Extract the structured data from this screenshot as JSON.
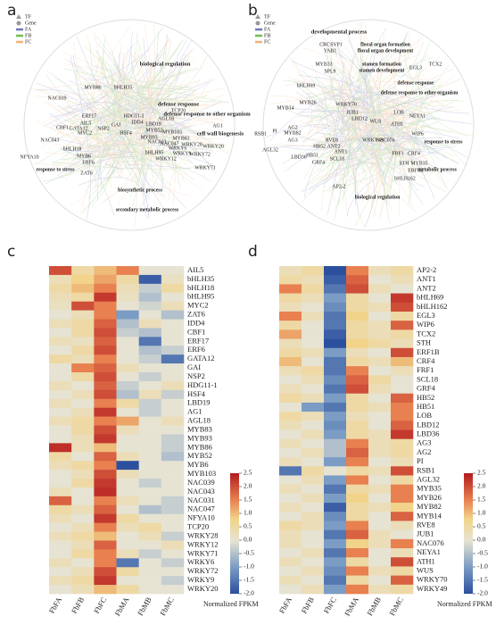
{
  "panels": [
    "a",
    "b",
    "c",
    "d"
  ],
  "network_a": {
    "legend": [
      "TF",
      "Gene",
      "FA",
      "FB",
      "FC"
    ],
    "processes": [
      "biological regulation",
      "defense response",
      "defense response to other organism",
      "cell wall biogenesis",
      "response to stress",
      "biosynthetic process",
      "secondary metabolic process"
    ],
    "genes": [
      "MYB86",
      "bHLH35",
      "NAC039",
      "TCP20",
      "AG1",
      "ERF17",
      "HDG11-1",
      "AIL5",
      "CBF1",
      "GATA12",
      "NSP2",
      "GAI",
      "IDD4",
      "HSF4",
      "AGL18",
      "LBD19",
      "MYB52",
      "MYB103",
      "MYB93",
      "NAC031",
      "NAC047",
      "MYB83",
      "NAC043",
      "MYC2",
      "bHLH18",
      "MYB6",
      "ERF6",
      "NFYA10",
      "ZAT6",
      "WRKY28",
      "WRKY6",
      "WRKY9",
      "WRKY20",
      "WRKY72",
      "WRKY12",
      "WRKY71",
      "bHLH95"
    ]
  },
  "network_b": {
    "legend": [
      "TF",
      "Gene",
      "FA",
      "FB",
      "FC"
    ],
    "processes": [
      "developmental process",
      "floral organ formation",
      "floral organ development",
      "stamen formation",
      "stamen development",
      "defense response",
      "defense response to other organism",
      "response to stress",
      "metabolic process",
      "biological regulation"
    ],
    "genes": [
      "CRC",
      "SVP1",
      "YAB1",
      "MYB33",
      "SPL9",
      "EGL3",
      "TCX2",
      "bHLH69",
      "WRKY70",
      "MYB14",
      "MYB26",
      "JUB1",
      "LOB",
      "NEYA1",
      "LHD12",
      "WUS",
      "ATH1",
      "RSB1",
      "PI",
      "MYB82",
      "AG2",
      "AG3",
      "AGL32",
      "WIP6",
      "WRKY49",
      "NAC076",
      "HB52",
      "RVE8",
      "ANT2",
      "ANT1",
      "HB51",
      "LBD36",
      "SCL18",
      "FRF1",
      "CRF4",
      "GRF4",
      "STH",
      "ERF1B",
      "MYB35",
      "AP2-2",
      "bHLH162"
    ]
  },
  "chart_data": [
    {
      "type": "heatmap",
      "columns": [
        "FbFA",
        "FbFB",
        "FbFC",
        "FbMA",
        "FbMB",
        "FbMC"
      ],
      "rows": [
        "AIL5",
        "bHLH35",
        "bHLH18",
        "bHLH95",
        "MYC2",
        "ZAT6",
        "IDD4",
        "CBF1",
        "ERF17",
        "ERF6",
        "GATA12",
        "GAI",
        "NSP2",
        "HDG11-1",
        "HSF4",
        "LBD19",
        "AG1",
        "AGL18",
        "MYB83",
        "MYB93",
        "MYB86",
        "MYB52",
        "MYB6",
        "MYB103",
        "NAC039",
        "NAC043",
        "NAC031",
        "NAC047",
        "NFYA10",
        "TCP20",
        "WRKY28",
        "WRKY12",
        "WRKY71",
        "WRKY6",
        "WRKY72",
        "WRKY9",
        "WRKY20"
      ],
      "values": [
        [
          2.0,
          0.5,
          1.0,
          1.5,
          0.0,
          0.0
        ],
        [
          0.3,
          0.8,
          1.2,
          0.5,
          -1.8,
          0.2
        ],
        [
          0.5,
          1.0,
          1.5,
          0.3,
          -0.3,
          0.5
        ],
        [
          0.3,
          0.5,
          2.2,
          0.2,
          -0.5,
          0.0
        ],
        [
          0.2,
          2.0,
          1.5,
          0.0,
          -0.2,
          0.3
        ],
        [
          0.0,
          0.3,
          1.5,
          -1.0,
          0.0,
          -0.5
        ],
        [
          0.3,
          0.5,
          1.8,
          -0.5,
          0.3,
          0.0
        ],
        [
          0.0,
          0.5,
          2.0,
          -0.3,
          -0.5,
          0.0
        ],
        [
          0.3,
          0.2,
          1.8,
          0.0,
          -1.5,
          0.0
        ],
        [
          0.0,
          0.5,
          2.0,
          0.0,
          -0.5,
          -0.3
        ],
        [
          0.5,
          0.3,
          1.5,
          0.0,
          -0.3,
          -1.5
        ],
        [
          0.0,
          1.5,
          1.8,
          0.3,
          0.0,
          0.0
        ],
        [
          0.0,
          0.5,
          2.0,
          0.0,
          -0.3,
          0.0
        ],
        [
          0.3,
          0.0,
          1.8,
          -0.3,
          0.0,
          0.3
        ],
        [
          0.0,
          0.3,
          2.0,
          -0.5,
          0.3,
          -0.3
        ],
        [
          0.3,
          0.0,
          1.5,
          0.5,
          -0.3,
          0.0
        ],
        [
          0.0,
          0.3,
          2.2,
          0.0,
          -0.3,
          0.0
        ],
        [
          0.3,
          0.5,
          1.5,
          1.2,
          0.0,
          0.3
        ],
        [
          0.0,
          0.5,
          2.0,
          0.3,
          0.0,
          0.0
        ],
        [
          0.0,
          0.3,
          2.2,
          0.0,
          0.0,
          -0.3
        ],
        [
          2.3,
          0.3,
          1.0,
          0.0,
          0.0,
          -0.3
        ],
        [
          0.5,
          0.0,
          1.8,
          0.3,
          0.0,
          -0.5
        ],
        [
          0.3,
          0.5,
          1.5,
          -2.0,
          0.0,
          0.0
        ],
        [
          0.0,
          0.3,
          2.0,
          0.3,
          0.0,
          0.0
        ],
        [
          0.0,
          0.5,
          2.2,
          0.0,
          -0.3,
          0.0
        ],
        [
          0.3,
          0.0,
          2.3,
          0.0,
          0.0,
          0.0
        ],
        [
          1.8,
          0.0,
          1.5,
          0.3,
          0.0,
          -0.3
        ],
        [
          0.5,
          0.3,
          1.8,
          0.0,
          -0.5,
          -0.3
        ],
        [
          0.3,
          0.0,
          2.2,
          0.5,
          0.0,
          0.0
        ],
        [
          0.0,
          0.3,
          1.5,
          0.3,
          0.5,
          0.0
        ],
        [
          0.3,
          0.5,
          1.0,
          0.0,
          0.3,
          -0.3
        ],
        [
          0.0,
          0.3,
          1.8,
          0.0,
          0.0,
          0.3
        ],
        [
          0.0,
          0.5,
          1.5,
          0.3,
          -0.3,
          0.0
        ],
        [
          0.3,
          0.0,
          1.5,
          -1.5,
          0.0,
          -0.3
        ],
        [
          0.0,
          0.3,
          2.0,
          0.5,
          0.0,
          0.0
        ],
        [
          0.3,
          0.5,
          2.2,
          0.0,
          0.0,
          -0.3
        ],
        [
          0.0,
          0.3,
          1.0,
          0.5,
          0.0,
          0.0
        ]
      ],
      "zlim": [
        -2,
        2.5
      ],
      "zticks": [
        2.5,
        {
          "value": 2,
          "label": "2.0"
        },
        1.5,
        {
          "value": 1,
          "label": "1.0"
        },
        0.5,
        {
          "value": 0,
          "label": "0.0"
        },
        -0.5,
        {
          "value": -1,
          "label": "-1.0"
        },
        -1.5,
        {
          "value": -2,
          "label": "-2.0"
        }
      ],
      "colorbar_label": "Normalized FPKM"
    },
    {
      "type": "heatmap",
      "columns": [
        "FbFA",
        "FbFB",
        "FbFC",
        "FbMA",
        "FbMB",
        "FbMC"
      ],
      "rows": [
        "AP2-2",
        "ANT1",
        "ANT2",
        "bHLH69",
        "bHLH162",
        "EGL3",
        "WIP6",
        "TCX2",
        "STH",
        "ERF1B",
        "CRF4",
        "FRF1",
        "SCL18",
        "GRF4",
        "HB52",
        "HB51",
        "LOB",
        "LBD12",
        "LBD36",
        "AG3",
        "AG2",
        "PI",
        "RSB1",
        "AGL32",
        "MYB35",
        "MYB26",
        "MYB82",
        "MYB14",
        "RVE8",
        "JUB1",
        "NAC076",
        "NEYA1",
        "ATH1",
        "WUS",
        "WRKY70",
        "WRKY49"
      ],
      "values": [
        [
          0.3,
          0.5,
          -2.0,
          1.5,
          0.3,
          0.5
        ],
        [
          0.5,
          0.3,
          -1.8,
          1.8,
          0.0,
          0.3
        ],
        [
          1.5,
          0.5,
          -1.5,
          2.0,
          0.3,
          0.0
        ],
        [
          0.5,
          0.3,
          -1.0,
          0.5,
          0.0,
          2.2
        ],
        [
          0.3,
          0.0,
          -1.2,
          0.5,
          0.3,
          2.0
        ],
        [
          1.5,
          0.3,
          -1.5,
          0.8,
          0.0,
          0.5
        ],
        [
          0.5,
          0.0,
          -1.5,
          0.5,
          0.3,
          1.8
        ],
        [
          1.2,
          0.0,
          -1.8,
          0.5,
          0.3,
          0.5
        ],
        [
          0.3,
          0.0,
          -2.0,
          0.8,
          0.5,
          0.3
        ],
        [
          0.5,
          0.3,
          -1.0,
          0.3,
          0.0,
          2.0
        ],
        [
          1.0,
          0.0,
          -1.5,
          0.5,
          0.3,
          1.0
        ],
        [
          0.3,
          0.5,
          -1.5,
          1.5,
          0.0,
          0.3
        ],
        [
          0.0,
          0.3,
          -1.2,
          1.8,
          0.5,
          0.0
        ],
        [
          0.3,
          0.0,
          -1.5,
          2.0,
          0.3,
          0.0
        ],
        [
          0.5,
          0.3,
          -1.0,
          0.5,
          0.0,
          1.8
        ],
        [
          0.0,
          -1.0,
          -1.5,
          0.5,
          0.3,
          1.5
        ],
        [
          0.5,
          0.3,
          -1.0,
          0.3,
          0.0,
          1.5
        ],
        [
          0.3,
          0.0,
          -1.2,
          0.5,
          0.0,
          1.8
        ],
        [
          0.0,
          0.3,
          -1.0,
          0.5,
          0.3,
          2.2
        ],
        [
          0.3,
          0.0,
          -0.5,
          1.5,
          0.3,
          0.5
        ],
        [
          0.0,
          0.3,
          -0.5,
          1.8,
          0.3,
          0.5
        ],
        [
          0.3,
          0.0,
          -1.0,
          1.5,
          0.0,
          0.3
        ],
        [
          -1.5,
          0.5,
          0.0,
          0.5,
          0.3,
          2.0
        ],
        [
          0.0,
          0.3,
          -1.0,
          1.5,
          0.0,
          0.5
        ],
        [
          0.3,
          0.0,
          -1.5,
          0.5,
          0.3,
          1.5
        ],
        [
          0.0,
          0.3,
          -1.0,
          0.8,
          0.0,
          1.5
        ],
        [
          0.3,
          0.0,
          -1.8,
          0.5,
          0.3,
          0.8
        ],
        [
          0.0,
          0.3,
          -1.2,
          0.5,
          0.0,
          1.8
        ],
        [
          0.5,
          0.3,
          -1.0,
          1.5,
          0.0,
          0.3
        ],
        [
          0.3,
          0.0,
          -1.5,
          1.8,
          0.3,
          0.0
        ],
        [
          0.3,
          0.0,
          -1.0,
          0.8,
          0.3,
          1.5
        ],
        [
          0.0,
          0.3,
          -1.5,
          1.5,
          0.0,
          0.3
        ],
        [
          0.3,
          0.0,
          -1.0,
          0.5,
          0.0,
          2.0
        ],
        [
          0.0,
          0.3,
          -1.2,
          1.5,
          0.3,
          0.5
        ],
        [
          0.3,
          0.0,
          -1.5,
          0.5,
          0.0,
          1.8
        ],
        [
          0.0,
          0.3,
          -1.0,
          1.5,
          0.3,
          0.5
        ]
      ],
      "zlim": [
        -2,
        2.5
      ],
      "zticks": [
        2.5,
        {
          "value": 2,
          "label": "2.0"
        },
        1.5,
        {
          "value": 1,
          "label": "1.0"
        },
        0.5,
        {
          "value": 0,
          "label": "0.0"
        },
        -0.5,
        {
          "value": -1,
          "label": "-1.0"
        },
        -1.5,
        {
          "value": -2,
          "label": "-2.0"
        }
      ],
      "colorbar_label": "Normalized FPKM"
    }
  ]
}
